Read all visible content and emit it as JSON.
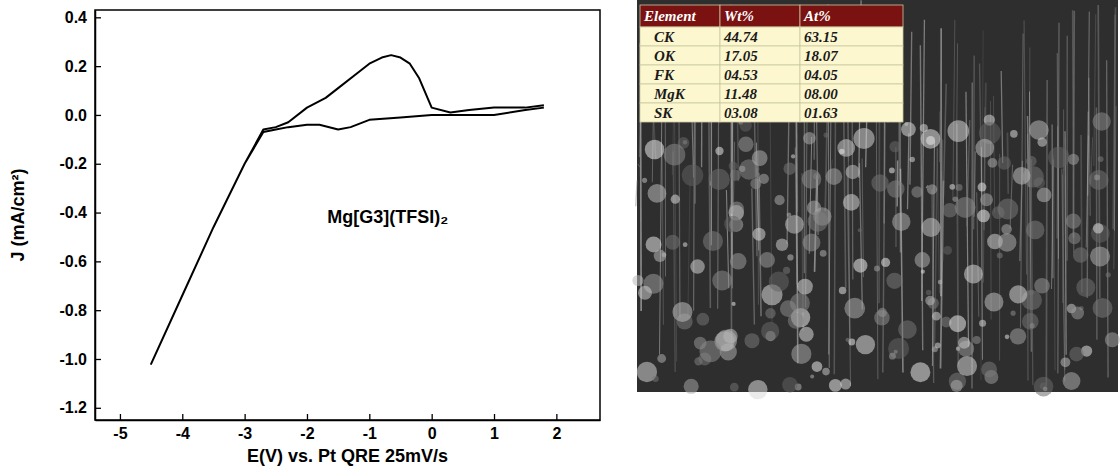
{
  "chart_data": {
    "type": "line",
    "x_label": "E(V) vs. Pt QRE 25mV/s",
    "y_label": "J (mA/cm²)",
    "annotation": "Mg[G3](TFSI)₂",
    "x": [
      1.8,
      1.5,
      1.0,
      0.5,
      0.0,
      -0.5,
      -1.0,
      -1.3,
      -1.5,
      -1.8,
      -2.0,
      -2.3,
      -2.5,
      -2.7,
      -3.0,
      -3.5,
      -4.0,
      -4.5,
      -4.0,
      -3.5,
      -3.0,
      -2.7,
      -2.5,
      -2.3,
      -2.0,
      -1.7,
      -1.5,
      -1.2,
      -1.0,
      -0.8,
      -0.65,
      -0.5,
      -0.35,
      -0.2,
      0.0,
      0.3,
      0.6,
      1.0,
      1.3,
      1.5,
      1.8
    ],
    "values": [
      0.03,
      0.02,
      0.0,
      0.0,
      0.0,
      -0.01,
      -0.02,
      -0.05,
      -0.06,
      -0.04,
      -0.04,
      -0.05,
      -0.06,
      -0.07,
      -0.2,
      -0.46,
      -0.74,
      -1.02,
      -0.74,
      -0.46,
      -0.2,
      -0.06,
      -0.05,
      -0.03,
      0.03,
      0.07,
      0.11,
      0.17,
      0.21,
      0.235,
      0.245,
      0.235,
      0.21,
      0.15,
      0.03,
      0.01,
      0.02,
      0.03,
      0.03,
      0.03,
      0.04
    ],
    "color": "#000000",
    "xlim": [
      -5.4,
      2.7
    ],
    "ylim": [
      -1.25,
      0.43
    ],
    "xticks": [
      -5,
      -4,
      -3,
      -2,
      -1,
      0,
      1,
      2
    ],
    "yticks": [
      0.4,
      0.2,
      {
        "value": 0,
        "label": "0.0"
      },
      -0.2,
      -0.4,
      -0.6,
      -0.8,
      {
        "value": -1,
        "label": "-1.0"
      },
      -1.2
    ],
    "grid": false
  },
  "eds_table": {
    "header": [
      "Element",
      "Wt%",
      "At%"
    ],
    "rows": [
      [
        "CK",
        "44.74",
        "63.15"
      ],
      [
        "OK",
        "17.05",
        "18.07"
      ],
      [
        "FK",
        "04.53",
        "04.05"
      ],
      [
        "MgK",
        "11.48",
        "08.00"
      ],
      [
        "SK",
        "03.08",
        "01.63"
      ]
    ]
  }
}
